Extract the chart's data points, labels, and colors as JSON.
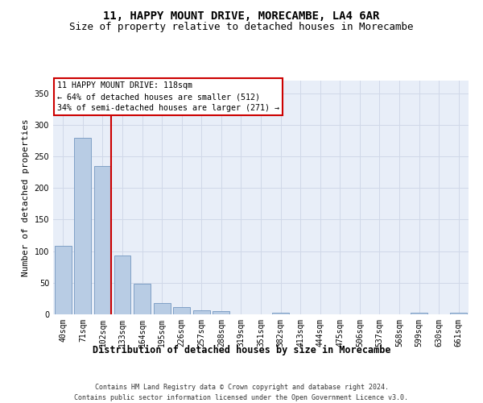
{
  "title": "11, HAPPY MOUNT DRIVE, MORECAMBE, LA4 6AR",
  "subtitle": "Size of property relative to detached houses in Morecambe",
  "xlabel": "Distribution of detached houses by size in Morecambe",
  "ylabel": "Number of detached properties",
  "categories": [
    "40sqm",
    "71sqm",
    "102sqm",
    "133sqm",
    "164sqm",
    "195sqm",
    "226sqm",
    "257sqm",
    "288sqm",
    "319sqm",
    "351sqm",
    "382sqm",
    "413sqm",
    "444sqm",
    "475sqm",
    "506sqm",
    "537sqm",
    "568sqm",
    "599sqm",
    "630sqm",
    "661sqm"
  ],
  "values": [
    108,
    280,
    235,
    93,
    48,
    18,
    11,
    6,
    5,
    0,
    0,
    3,
    0,
    0,
    0,
    0,
    0,
    0,
    3,
    0,
    3
  ],
  "bar_color": "#b8cce4",
  "bar_edge_color": "#7397c0",
  "vline_color": "#cc0000",
  "ylim": [
    0,
    370
  ],
  "yticks": [
    0,
    50,
    100,
    150,
    200,
    250,
    300,
    350
  ],
  "annotation_text": "11 HAPPY MOUNT DRIVE: 118sqm\n← 64% of detached houses are smaller (512)\n34% of semi-detached houses are larger (271) →",
  "annotation_box_color": "#ffffff",
  "annotation_box_edge": "#cc0000",
  "footer_line1": "Contains HM Land Registry data © Crown copyright and database right 2024.",
  "footer_line2": "Contains public sector information licensed under the Open Government Licence v3.0.",
  "grid_color": "#d0d8e8",
  "background_color": "#e8eef8",
  "title_fontsize": 10,
  "subtitle_fontsize": 9,
  "ylabel_fontsize": 8,
  "tick_fontsize": 7,
  "footer_fontsize": 6
}
